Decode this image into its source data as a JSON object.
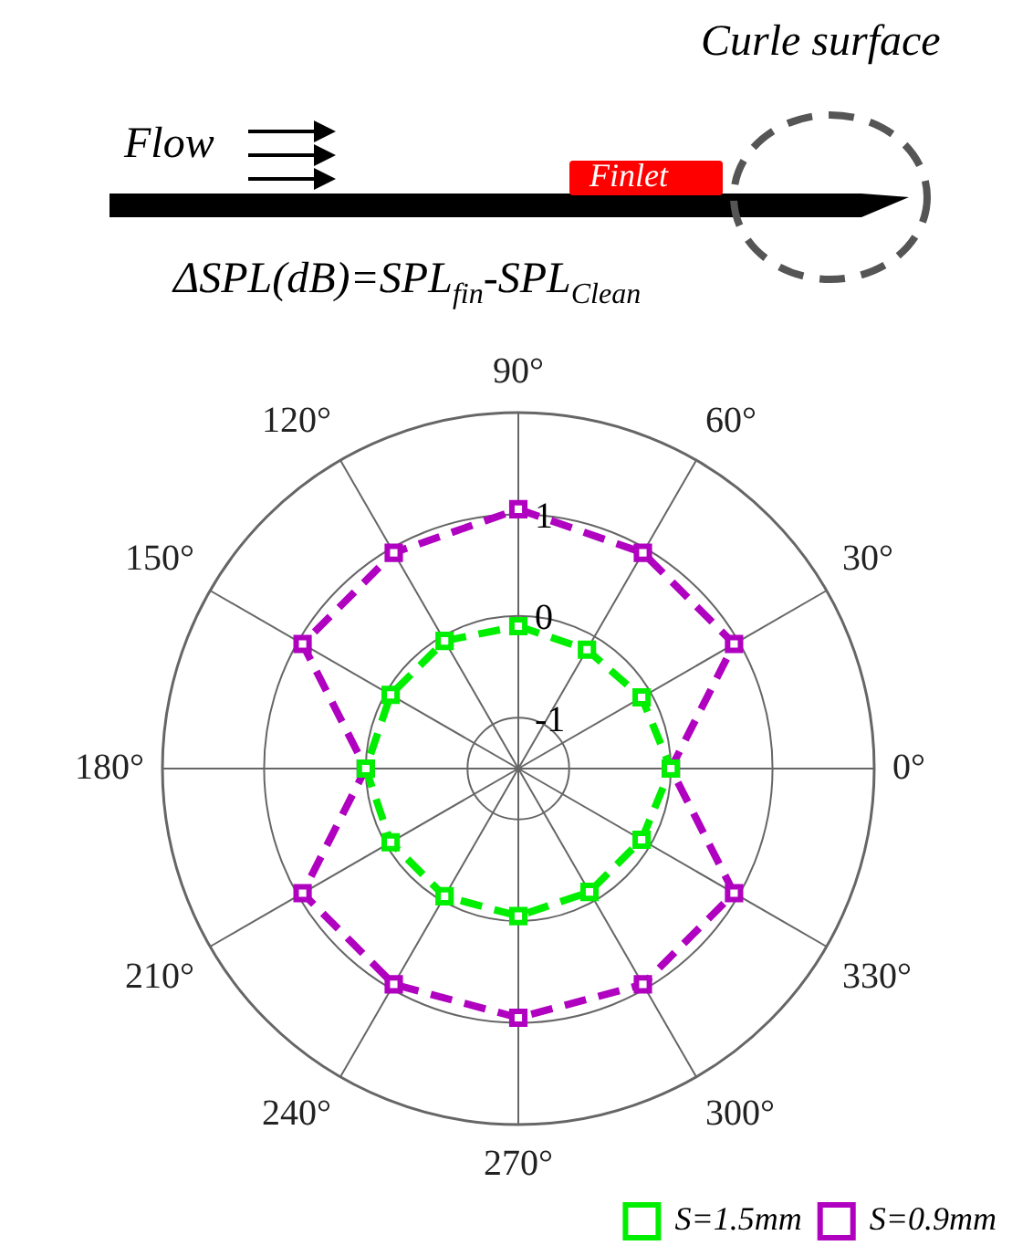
{
  "chart_data": {
    "type": "radar",
    "title": "ΔSPL(dB)=SPL$_{fin}$-SPL$_{Clean}$",
    "annotations": [
      "Flow",
      "Finlet",
      "Curle surface"
    ],
    "categories": [
      "90°",
      "60°",
      "30°",
      "0°",
      "330°",
      "300°",
      "270°",
      "240°",
      "210°",
      "180°",
      "150°",
      "120°"
    ],
    "series": [
      {
        "name": "S=1.5mm",
        "color": "#00ee00",
        "values": [
          -0.1,
          -0.15,
          -0.1,
          0,
          -0.1,
          -0.1,
          -0.05,
          -0.05,
          -0.05,
          0,
          -0.05,
          -0.05
        ]
      },
      {
        "name": "S=0.9mm",
        "color": "#b000c0",
        "values": [
          1.05,
          0.95,
          0.95,
          0,
          0.95,
          0.95,
          0.95,
          0.95,
          0.95,
          0,
          0.95,
          0.95
        ]
      }
    ],
    "ylim": [
      -1.5,
      2
    ],
    "yticks": [
      -1,
      0,
      1
    ],
    "grid": true,
    "legend": "bottom right",
    "marker": "square",
    "line_style": "dashed"
  }
}
